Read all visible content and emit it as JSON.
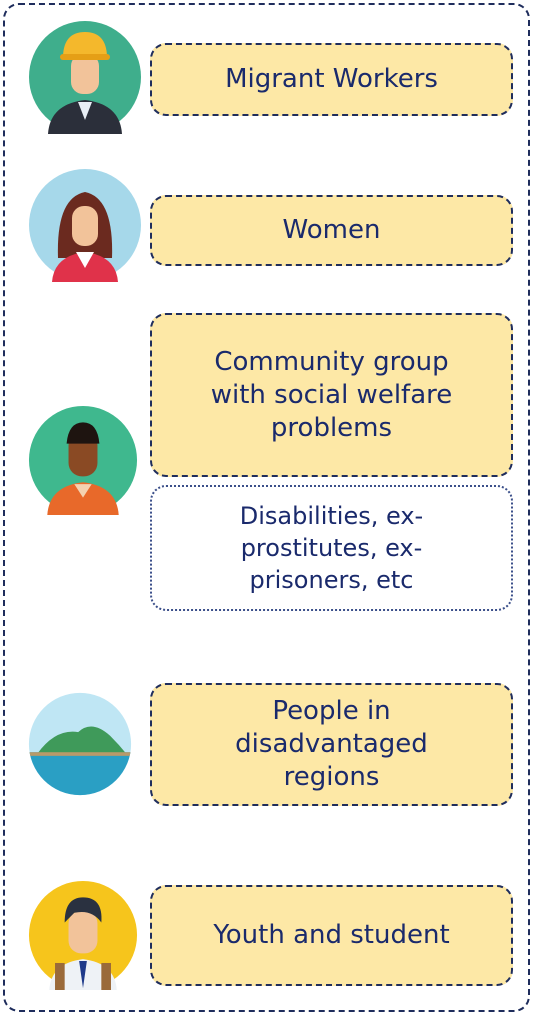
{
  "groups": [
    {
      "label": "Migrant Workers"
    },
    {
      "label": "Women"
    },
    {
      "label": "Community group with social welfare problems",
      "note": "Disabilities, ex-prostitutes, ex-prisoners, etc"
    },
    {
      "label": "People in disadvantaged regions"
    },
    {
      "label": "Youth and student"
    }
  ]
}
